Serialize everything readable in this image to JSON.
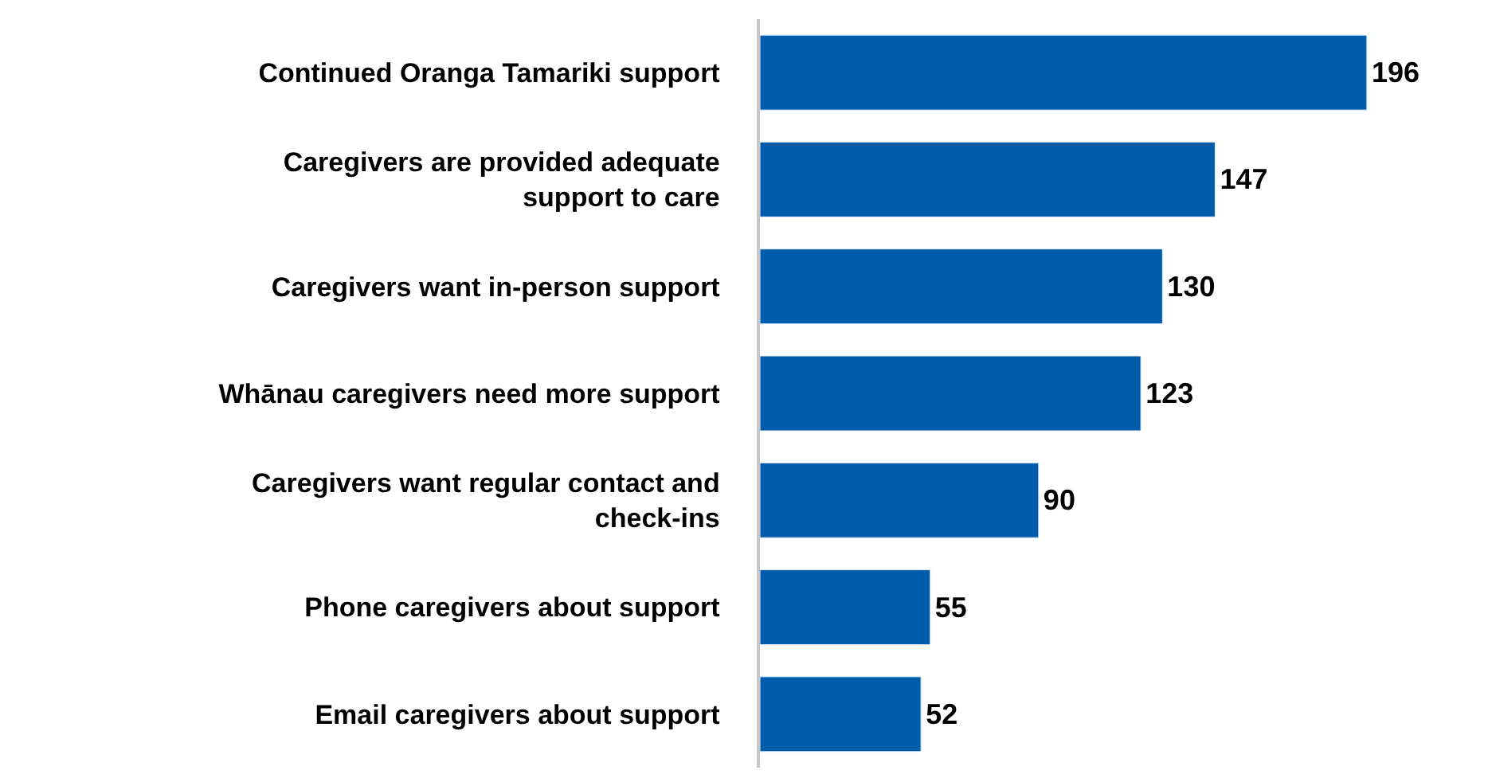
{
  "chart_data": {
    "type": "bar",
    "orientation": "horizontal",
    "categories": [
      "Continued Oranga Tamariki support",
      "Caregivers are provided adequate\nsupport to care",
      "Caregivers want in-person support",
      "Whānau caregivers need more support",
      "Caregivers want regular contact and\ncheck-ins",
      "Phone caregivers about support",
      "Email caregivers about support"
    ],
    "values": [
      196,
      147,
      130,
      123,
      90,
      55,
      52
    ],
    "color": "#005dab",
    "data_labels": true,
    "tick_labels": "y"
  }
}
